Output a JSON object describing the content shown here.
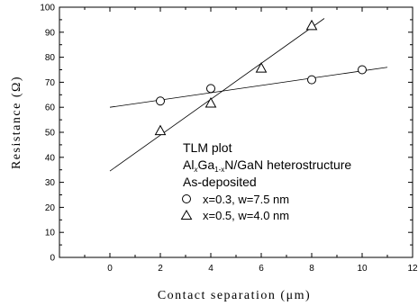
{
  "chart_data": {
    "type": "scatter",
    "xlabel": "Contact separation (μm)",
    "ylabel": "Resistance (Ω)",
    "xlim": [
      -2,
      12
    ],
    "ylim": [
      0,
      100
    ],
    "x_ticks": [
      0,
      2,
      4,
      6,
      8,
      10,
      12
    ],
    "y_ticks": [
      0,
      10,
      20,
      30,
      40,
      50,
      60,
      70,
      80,
      90,
      100
    ],
    "x_tick_labels": [
      "0",
      "2",
      "4",
      "6",
      "8",
      "10",
      "12"
    ],
    "y_tick_labels": [
      "0",
      "10",
      "20",
      "30",
      "40",
      "50",
      "60",
      "70",
      "80",
      "90",
      "100"
    ],
    "grid": false,
    "legend": {
      "placement": "lower-right",
      "lines": [
        "TLM plot",
        "heterostructure",
        "As-deposited"
      ],
      "composition": {
        "al": "Al",
        "x_sub": "x",
        "ga": "Ga",
        "one_minus_x_sub": "1-x",
        "rest": "N/GaN"
      }
    },
    "series": [
      {
        "name": "x=0.3, w=7.5 nm",
        "marker": "circle",
        "x": [
          2,
          4,
          8,
          10
        ],
        "y": [
          62.5,
          67.5,
          71,
          75
        ],
        "fit": {
          "x": [
            0,
            11
          ],
          "y": [
            60,
            76
          ]
        }
      },
      {
        "name": "x=0.5, w=4.0 nm",
        "marker": "triangle",
        "x": [
          2,
          4,
          6,
          8
        ],
        "y": [
          50.5,
          61.5,
          75.5,
          92.5
        ],
        "fit": {
          "x": [
            0,
            8.5
          ],
          "y": [
            34.5,
            95.5
          ]
        }
      }
    ]
  }
}
